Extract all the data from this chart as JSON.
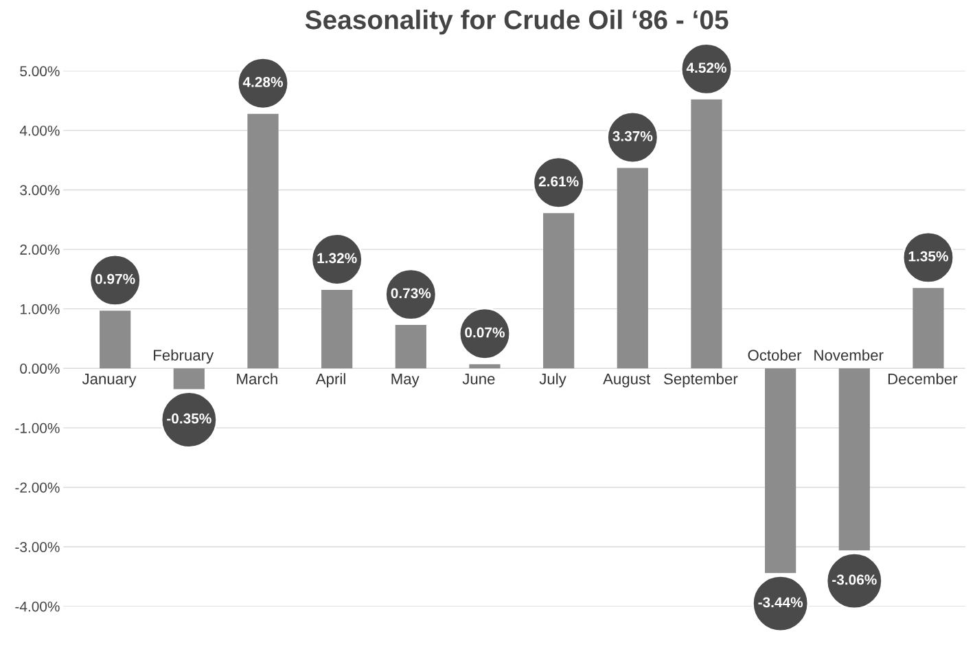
{
  "chart_data": {
    "type": "bar",
    "title": "Seasonality for Crude Oil ‘86 - ‘05",
    "categories": [
      "January",
      "February",
      "March",
      "April",
      "May",
      "June",
      "July",
      "August",
      "September",
      "October",
      "November",
      "December"
    ],
    "values": [
      0.97,
      -0.35,
      4.28,
      1.32,
      0.73,
      0.07,
      2.61,
      3.37,
      4.52,
      -3.44,
      -3.06,
      1.35
    ],
    "value_labels": [
      "0.97%",
      "-0.35%",
      "4.28%",
      "1.32%",
      "0.73%",
      "0.07%",
      "2.61%",
      "3.37%",
      "4.52%",
      "-3.44%",
      "-3.06%",
      "1.35%"
    ],
    "color": "#8c8c8c",
    "ylim": [
      -4,
      5
    ],
    "yticks": [
      {
        "value": 5,
        "label": "5.00%"
      },
      {
        "value": 4,
        "label": "4.00%"
      },
      {
        "value": 3,
        "label": "3.00%"
      },
      {
        "value": 2,
        "label": "2.00%"
      },
      {
        "value": 1,
        "label": "1.00%"
      },
      {
        "value": 0,
        "label": "0.00%"
      },
      {
        "value": -1,
        "label": "-1.00%"
      },
      {
        "value": -2,
        "label": "-2.00%"
      },
      {
        "value": -3,
        "label": "-3.00%"
      },
      {
        "value": -4,
        "label": "-4.00%"
      }
    ],
    "grid": "y",
    "legend": false
  }
}
